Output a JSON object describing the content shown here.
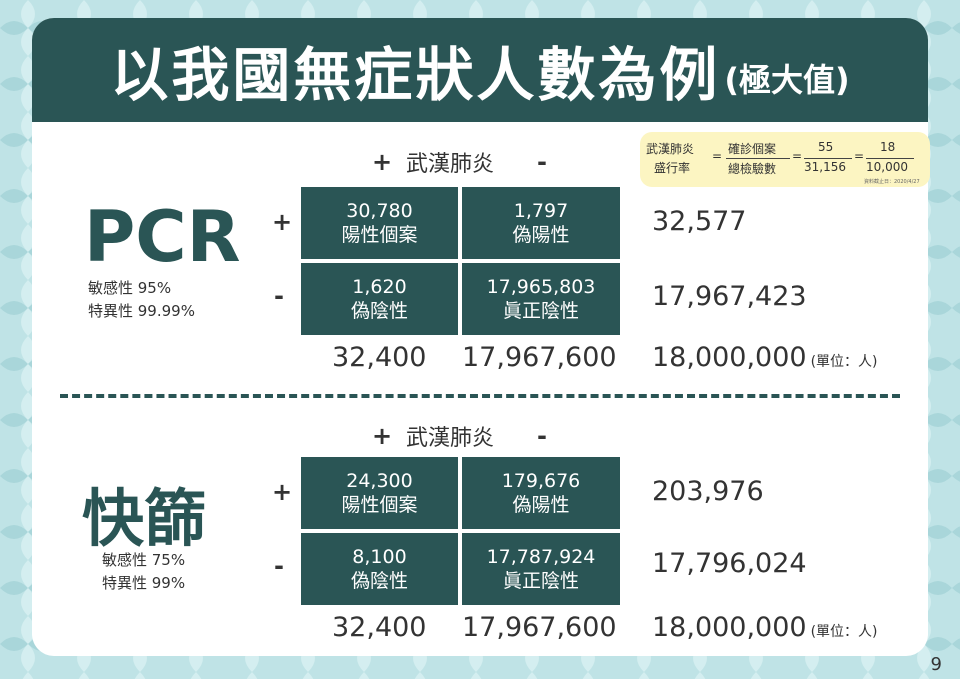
{
  "title": {
    "main": "以我國無症狀人數為例",
    "sub": "(極大值)"
  },
  "formula": {
    "lhs_line1": "武漢肺炎",
    "lhs_line2": "盛行率",
    "eq": "=",
    "numerator": "確診個案",
    "denominator": "總檢驗數",
    "num2": "55",
    "den2": "31,156",
    "num3": "18",
    "den3": "10,000",
    "note": "資料截止日：2020/4/27"
  },
  "sections": [
    {
      "header_label": "武漢肺炎",
      "plus": "+",
      "minus": "-",
      "test_name": "PCR",
      "sensitivity": "敏感性 95%",
      "specificity": "特異性 99.99%",
      "cells": [
        {
          "value": "30,780",
          "label": "陽性個案"
        },
        {
          "value": "1,797",
          "label": "偽陽性"
        },
        {
          "value": "1,620",
          "label": "偽陰性"
        },
        {
          "value": "17,965,803",
          "label": "眞正陰性"
        }
      ],
      "row_totals": [
        "32,577",
        "17,967,423"
      ],
      "col_totals": [
        "32,400",
        "17,967,600"
      ],
      "grand_total": "18,000,000",
      "unit": "(單位：人)"
    },
    {
      "header_label": "武漢肺炎",
      "plus": "+",
      "minus": "-",
      "test_name": "快篩",
      "sensitivity": "敏感性 75%",
      "specificity": "特異性 99%",
      "cells": [
        {
          "value": "24,300",
          "label": "陽性個案"
        },
        {
          "value": "179,676",
          "label": "偽陽性"
        },
        {
          "value": "8,100",
          "label": "偽陰性"
        },
        {
          "value": "17,787,924",
          "label": "眞正陰性"
        }
      ],
      "row_totals": [
        "203,976",
        "17,796,024"
      ],
      "col_totals": [
        "32,400",
        "17,967,600"
      ],
      "grand_total": "18,000,000",
      "unit": "(單位：人)"
    }
  ],
  "page_number": "9",
  "colors": {
    "dark_teal": "#2a5555",
    "background": "#bfe3e6",
    "formula_bg": "#fcf5c2"
  }
}
